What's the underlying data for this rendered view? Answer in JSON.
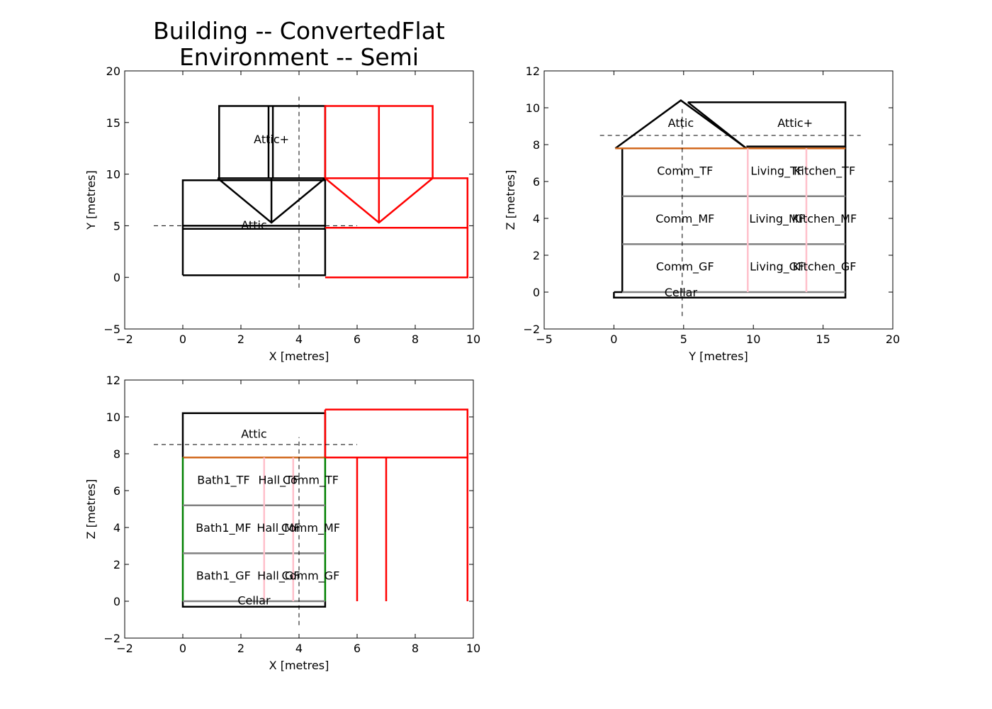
{
  "title_lines": [
    "Building -- ConvertedFlat",
    "Environment -- Semi"
  ],
  "colors": {
    "building": "#000000",
    "neighbour": "#ff0000",
    "floor": "#808080",
    "partition": "#ffc0cb",
    "eaves": "#d2691e",
    "party_wall": "#008000",
    "node": "#87ceeb",
    "reference": "#000000"
  },
  "chart_data": [
    {
      "id": "plan",
      "type": "line",
      "xlabel": "X [metres]",
      "ylabel": "Y [metres]",
      "xlim": [
        -2,
        10
      ],
      "ylim": [
        -5,
        20
      ],
      "xticks": [
        -2,
        0,
        2,
        4,
        6,
        8,
        10
      ],
      "yticks": [
        -5,
        0,
        5,
        10,
        15,
        20
      ],
      "ytick_labels": [
        "−5",
        "0",
        "5",
        "10",
        "15",
        "20"
      ],
      "xtick_labels": [
        "−2",
        "0",
        "2",
        "4",
        "6",
        "8",
        "10"
      ],
      "series": [
        {
          "color": "#000000",
          "width": 2.5,
          "points": [
            [
              0,
              0.2
            ],
            [
              4.9,
              0.2
            ],
            [
              4.9,
              9.4
            ],
            [
              0,
              9.4
            ],
            [
              0,
              0.2
            ]
          ]
        },
        {
          "color": "#000000",
          "width": 2.5,
          "points": [
            [
              0,
              4.7
            ],
            [
              4.9,
              4.7
            ]
          ]
        },
        {
          "color": "#000000",
          "width": 2.5,
          "points": [
            [
              0,
              5.0
            ],
            [
              4.9,
              5.0
            ]
          ]
        },
        {
          "color": "#000000",
          "width": 2.5,
          "points": [
            [
              1.25,
              9.6
            ],
            [
              1.25,
              16.6
            ],
            [
              4.9,
              16.6
            ],
            [
              4.9,
              9.6
            ],
            [
              1.2,
              9.6
            ]
          ]
        },
        {
          "color": "#000000",
          "width": 2.5,
          "points": [
            [
              1.2,
              9.6
            ],
            [
              3.05,
              5.3
            ],
            [
              4.9,
              9.6
            ]
          ]
        },
        {
          "color": "#000000",
          "width": 2.5,
          "points": [
            [
              2.95,
              16.6
            ],
            [
              2.95,
              9.6
            ]
          ]
        },
        {
          "color": "#000000",
          "width": 2.5,
          "points": [
            [
              3.1,
              16.6
            ],
            [
              3.1,
              9.6
            ]
          ]
        },
        {
          "color": "#000000",
          "width": 2.5,
          "points": [
            [
              3.05,
              9.6
            ],
            [
              3.05,
              5.3
            ]
          ]
        },
        {
          "color": "#ff0000",
          "width": 2.5,
          "points": [
            [
              4.9,
              0
            ],
            [
              9.8,
              0
            ],
            [
              9.8,
              9.6
            ],
            [
              4.9,
              9.6
            ]
          ]
        },
        {
          "color": "#ff0000",
          "width": 2.5,
          "points": [
            [
              4.9,
              4.8
            ],
            [
              9.8,
              4.8
            ]
          ]
        },
        {
          "color": "#ff0000",
          "width": 2.5,
          "points": [
            [
              4.9,
              9.6
            ],
            [
              4.9,
              16.6
            ],
            [
              8.6,
              16.6
            ],
            [
              8.6,
              9.6
            ]
          ]
        },
        {
          "color": "#ff0000",
          "width": 2.5,
          "points": [
            [
              4.9,
              9.6
            ],
            [
              6.75,
              5.3
            ],
            [
              8.6,
              9.6
            ]
          ]
        },
        {
          "color": "#ff0000",
          "width": 2.5,
          "points": [
            [
              6.75,
              16.6
            ],
            [
              6.75,
              5.3
            ]
          ]
        },
        {
          "color": "#000000",
          "width": 1,
          "dash": "6,5",
          "points": [
            [
              4,
              -1
            ],
            [
              4,
              17.5
            ]
          ]
        },
        {
          "color": "#000000",
          "width": 1,
          "dash": "6,5",
          "points": [
            [
              -1,
              5
            ],
            [
              6,
              5
            ]
          ]
        }
      ],
      "labels": [
        {
          "text": "Attic+",
          "x": 3.05,
          "y": 13.4
        },
        {
          "text": "Attic",
          "x": 2.45,
          "y": 5.1
        }
      ]
    },
    {
      "id": "elevation-y",
      "type": "line",
      "xlabel": "Y [metres]",
      "ylabel": "Z [metres]",
      "xlim": [
        -5,
        20
      ],
      "ylim": [
        -2,
        12
      ],
      "xticks": [
        -5,
        0,
        5,
        10,
        15,
        20
      ],
      "yticks": [
        -2,
        0,
        2,
        4,
        6,
        8,
        10,
        12
      ],
      "xtick_labels": [
        "−5",
        "0",
        "5",
        "10",
        "15",
        "20"
      ],
      "ytick_labels": [
        "−2",
        "0",
        "2",
        "4",
        "6",
        "8",
        "10",
        "12"
      ],
      "series": [
        {
          "color": "#000000",
          "width": 2.5,
          "points": [
            [
              0,
              0
            ],
            [
              0,
              -0.3
            ],
            [
              16.6,
              -0.3
            ],
            [
              16.6,
              7.9
            ]
          ]
        },
        {
          "color": "#000000",
          "width": 2.5,
          "points": [
            [
              0,
              0
            ],
            [
              0.6,
              0
            ]
          ]
        },
        {
          "color": "#000000",
          "width": 2.5,
          "points": [
            [
              0.6,
              0
            ],
            [
              0.6,
              7.8
            ],
            [
              0.1,
              7.8
            ]
          ]
        },
        {
          "color": "#000000",
          "width": 2.5,
          "points": [
            [
              0.1,
              7.8
            ],
            [
              4.8,
              10.4
            ],
            [
              9.5,
              7.8
            ]
          ]
        },
        {
          "color": "#000000",
          "width": 2.5,
          "points": [
            [
              5.3,
              10.3
            ],
            [
              9.5,
              7.8
            ]
          ]
        },
        {
          "color": "#000000",
          "width": 2.5,
          "points": [
            [
              5.3,
              10.3
            ],
            [
              16.6,
              10.3
            ],
            [
              16.6,
              7.9
            ],
            [
              9.5,
              7.9
            ]
          ]
        },
        {
          "color": "#d2691e",
          "width": 2.5,
          "points": [
            [
              0.1,
              7.8
            ],
            [
              16.6,
              7.8
            ]
          ]
        },
        {
          "color": "#808080",
          "width": 2.5,
          "points": [
            [
              0.6,
              5.2
            ],
            [
              16.6,
              5.2
            ]
          ]
        },
        {
          "color": "#808080",
          "width": 2.5,
          "points": [
            [
              0.6,
              2.6
            ],
            [
              16.6,
              2.6
            ]
          ]
        },
        {
          "color": "#808080",
          "width": 2.5,
          "points": [
            [
              0.6,
              0
            ],
            [
              16.6,
              0
            ]
          ]
        },
        {
          "color": "#ffc0cb",
          "width": 2.5,
          "points": [
            [
              9.6,
              0
            ],
            [
              9.6,
              7.8
            ]
          ]
        },
        {
          "color": "#ffc0cb",
          "width": 2.5,
          "points": [
            [
              13.8,
              0
            ],
            [
              13.8,
              7.8
            ]
          ]
        },
        {
          "color": "#000000",
          "width": 1,
          "dash": "6,5",
          "points": [
            [
              4.9,
              -1.3
            ],
            [
              4.9,
              10.1
            ]
          ]
        },
        {
          "color": "#000000",
          "width": 1,
          "dash": "6,5",
          "points": [
            [
              -1,
              8.5
            ],
            [
              17.7,
              8.5
            ]
          ]
        }
      ],
      "labels": [
        {
          "text": "Attic",
          "x": 4.8,
          "y": 9.2
        },
        {
          "text": "Attic+",
          "x": 13,
          "y": 9.2
        },
        {
          "text": "Comm_TF",
          "x": 5.1,
          "y": 6.6
        },
        {
          "text": "Living_TF",
          "x": 11.7,
          "y": 6.6
        },
        {
          "text": "Kitchen_TF",
          "x": 15.1,
          "y": 6.6
        },
        {
          "text": "Comm_MF",
          "x": 5.1,
          "y": 4.0
        },
        {
          "text": "Living_MF",
          "x": 11.7,
          "y": 4.0
        },
        {
          "text": "Kitchen_MF",
          "x": 15.1,
          "y": 4.0
        },
        {
          "text": "Comm_GF",
          "x": 5.1,
          "y": 1.4
        },
        {
          "text": "Living_GF",
          "x": 11.7,
          "y": 1.4
        },
        {
          "text": "Kitchen_GF",
          "x": 15.1,
          "y": 1.4
        },
        {
          "text": "Cellar",
          "x": 4.8,
          "y": 0.0
        }
      ]
    },
    {
      "id": "elevation-x",
      "type": "line",
      "xlabel": "X [metres]",
      "ylabel": "Z [metres]",
      "xlim": [
        -2,
        10
      ],
      "ylim": [
        -2,
        12
      ],
      "xticks": [
        -2,
        0,
        2,
        4,
        6,
        8,
        10
      ],
      "yticks": [
        -2,
        0,
        2,
        4,
        6,
        8,
        10,
        12
      ],
      "xtick_labels": [
        "−2",
        "0",
        "2",
        "4",
        "6",
        "8",
        "10"
      ],
      "ytick_labels": [
        "−2",
        "0",
        "2",
        "4",
        "6",
        "8",
        "10",
        "12"
      ],
      "series": [
        {
          "color": "#000000",
          "width": 2.5,
          "points": [
            [
              0,
              7.8
            ],
            [
              0,
              10.2
            ],
            [
              4.9,
              10.2
            ],
            [
              4.9,
              7.8
            ]
          ]
        },
        {
          "color": "#000000",
          "width": 2.5,
          "points": [
            [
              0,
              0
            ],
            [
              0,
              -0.3
            ],
            [
              4.9,
              -0.3
            ],
            [
              4.9,
              0
            ]
          ]
        },
        {
          "color": "#d2691e",
          "width": 2.5,
          "points": [
            [
              0,
              7.8
            ],
            [
              4.9,
              7.8
            ]
          ]
        },
        {
          "color": "#008000",
          "width": 2.5,
          "points": [
            [
              0,
              7.8
            ],
            [
              0,
              0
            ]
          ]
        },
        {
          "color": "#008000",
          "width": 2.5,
          "points": [
            [
              4.9,
              7.8
            ],
            [
              4.9,
              0
            ]
          ]
        },
        {
          "color": "#808080",
          "width": 2.5,
          "points": [
            [
              0,
              5.2
            ],
            [
              4.9,
              5.2
            ]
          ]
        },
        {
          "color": "#808080",
          "width": 2.5,
          "points": [
            [
              0,
              2.6
            ],
            [
              4.9,
              2.6
            ]
          ]
        },
        {
          "color": "#808080",
          "width": 2.5,
          "points": [
            [
              0,
              0
            ],
            [
              4.9,
              0
            ]
          ]
        },
        {
          "color": "#ffc0cb",
          "width": 2.5,
          "points": [
            [
              2.8,
              0
            ],
            [
              2.8,
              7.8
            ]
          ]
        },
        {
          "color": "#ffc0cb",
          "width": 2.5,
          "points": [
            [
              3.8,
              0
            ],
            [
              3.8,
              7.8
            ]
          ]
        },
        {
          "color": "#ff0000",
          "width": 2.5,
          "points": [
            [
              4.9,
              10.4
            ],
            [
              9.8,
              10.4
            ],
            [
              9.8,
              0
            ]
          ]
        },
        {
          "color": "#ff0000",
          "width": 2.5,
          "points": [
            [
              4.9,
              7.8
            ],
            [
              9.8,
              7.8
            ]
          ]
        },
        {
          "color": "#ff0000",
          "width": 2.5,
          "points": [
            [
              4.9,
              10.4
            ],
            [
              4.9,
              7.8
            ]
          ]
        },
        {
          "color": "#ff0000",
          "width": 2.5,
          "points": [
            [
              6,
              7.8
            ],
            [
              6,
              0
            ]
          ]
        },
        {
          "color": "#ff0000",
          "width": 2.5,
          "points": [
            [
              7,
              7.8
            ],
            [
              7,
              0
            ]
          ]
        },
        {
          "color": "#000000",
          "width": 1,
          "dash": "6,5",
          "points": [
            [
              4,
              -1.3
            ],
            [
              4,
              8.9
            ]
          ]
        },
        {
          "color": "#000000",
          "width": 1,
          "dash": "6,5",
          "points": [
            [
              -1,
              8.5
            ],
            [
              6,
              8.5
            ]
          ]
        }
      ],
      "labels": [
        {
          "text": "Attic",
          "x": 2.45,
          "y": 9.1
        },
        {
          "text": "Bath1_TF",
          "x": 1.4,
          "y": 6.6
        },
        {
          "text": "Hall_TF",
          "x": 3.3,
          "y": 6.6
        },
        {
          "text": "Comm_TF",
          "x": 4.4,
          "y": 6.6
        },
        {
          "text": "Bath1_MF",
          "x": 1.4,
          "y": 4.0
        },
        {
          "text": "Hall_MF",
          "x": 3.3,
          "y": 4.0
        },
        {
          "text": "Comm_MF",
          "x": 4.4,
          "y": 4.0
        },
        {
          "text": "Bath1_GF",
          "x": 1.4,
          "y": 1.4
        },
        {
          "text": "Hall_GF",
          "x": 3.3,
          "y": 1.4
        },
        {
          "text": "Comm_GF",
          "x": 4.4,
          "y": 1.4
        },
        {
          "text": "Cellar",
          "x": 2.45,
          "y": 0.05
        }
      ]
    }
  ]
}
